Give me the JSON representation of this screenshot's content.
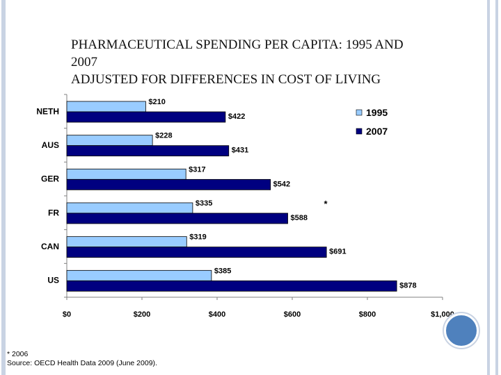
{
  "slide": {
    "title_lines": [
      "Pharmaceutical spending per capita: 1995 and",
      "2007",
      "Adjusted for differences in cost of living"
    ],
    "footnote_lines": [
      "* 2006",
      "Source: OECD Health Data 2009 (June 2009)."
    ]
  },
  "chart_data": {
    "type": "bar",
    "orientation": "horizontal",
    "categories": [
      "NETH",
      "AUS",
      "GER",
      "FR",
      "CAN",
      "US"
    ],
    "series": [
      {
        "name": "1995",
        "color": "#99ccff",
        "values": [
          210,
          228,
          317,
          335,
          319,
          385
        ],
        "labels": [
          "$210",
          "$228",
          "$317",
          "$335",
          "$319",
          "$385"
        ]
      },
      {
        "name": "2007",
        "color": "#000080",
        "values": [
          422,
          431,
          542,
          588,
          691,
          878
        ],
        "labels": [
          "$422",
          "$431",
          "$542",
          "$588",
          "$691",
          "$878"
        ]
      }
    ],
    "xlim": [
      0,
      1000
    ],
    "x_ticks": [
      0,
      200,
      400,
      600,
      800,
      1000
    ],
    "x_tick_labels": [
      "$0",
      "$200",
      "$400",
      "$600",
      "$800",
      "$1,000"
    ],
    "legend_position": "top-right",
    "annotation": {
      "text": "*",
      "category": "FR"
    },
    "grid": false
  }
}
